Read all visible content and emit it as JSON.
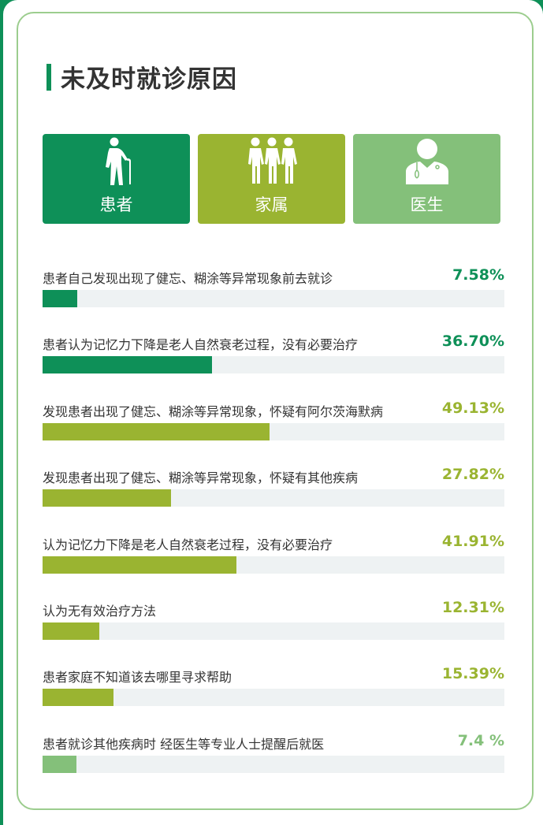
{
  "title": "未及时就诊原因",
  "colors": {
    "patient": "#0e9058",
    "family": "#9ab431",
    "doctor": "#84c07a",
    "track": "#eef2f3"
  },
  "categories": [
    {
      "label": "患者",
      "icon": "elderly-with-cane-icon",
      "color": "#0e9058"
    },
    {
      "label": "家属",
      "icon": "family-group-icon",
      "color": "#9ab431"
    },
    {
      "label": "医生",
      "icon": "doctor-stethoscope-icon",
      "color": "#84c07a"
    }
  ],
  "chart_data": {
    "type": "bar",
    "orientation": "horizontal",
    "xlim": [
      0,
      100
    ],
    "categories": [
      "患者自己发现出现了健忘、糊涂等异常现象前去就诊",
      "患者认为记忆力下降是老人自然衰老过程，没有必要治疗",
      "发现患者出现了健忘、糊涂等异常现象，怀疑有阿尔茨海默病",
      "发现患者出现了健忘、糊涂等异常现象，怀疑有其他疾病",
      "认为记忆力下降是老人自然衰老过程，没有必要治疗",
      "认为无有效治疗方法",
      "患者家庭不知道该去哪里寻求帮助",
      "患者就诊其他疾病时 经医生等专业人士提醒后就医"
    ],
    "values": [
      7.58,
      36.7,
      49.13,
      27.82,
      41.91,
      12.31,
      15.39,
      7.4
    ],
    "labels": [
      "7.58%",
      "36.70%",
      "49.13%",
      "27.82%",
      "41.91%",
      "12.31%",
      "15.39%",
      "7.4 %"
    ],
    "group": [
      "患者",
      "患者",
      "家属",
      "家属",
      "家属",
      "家属",
      "家属",
      "医生"
    ]
  }
}
